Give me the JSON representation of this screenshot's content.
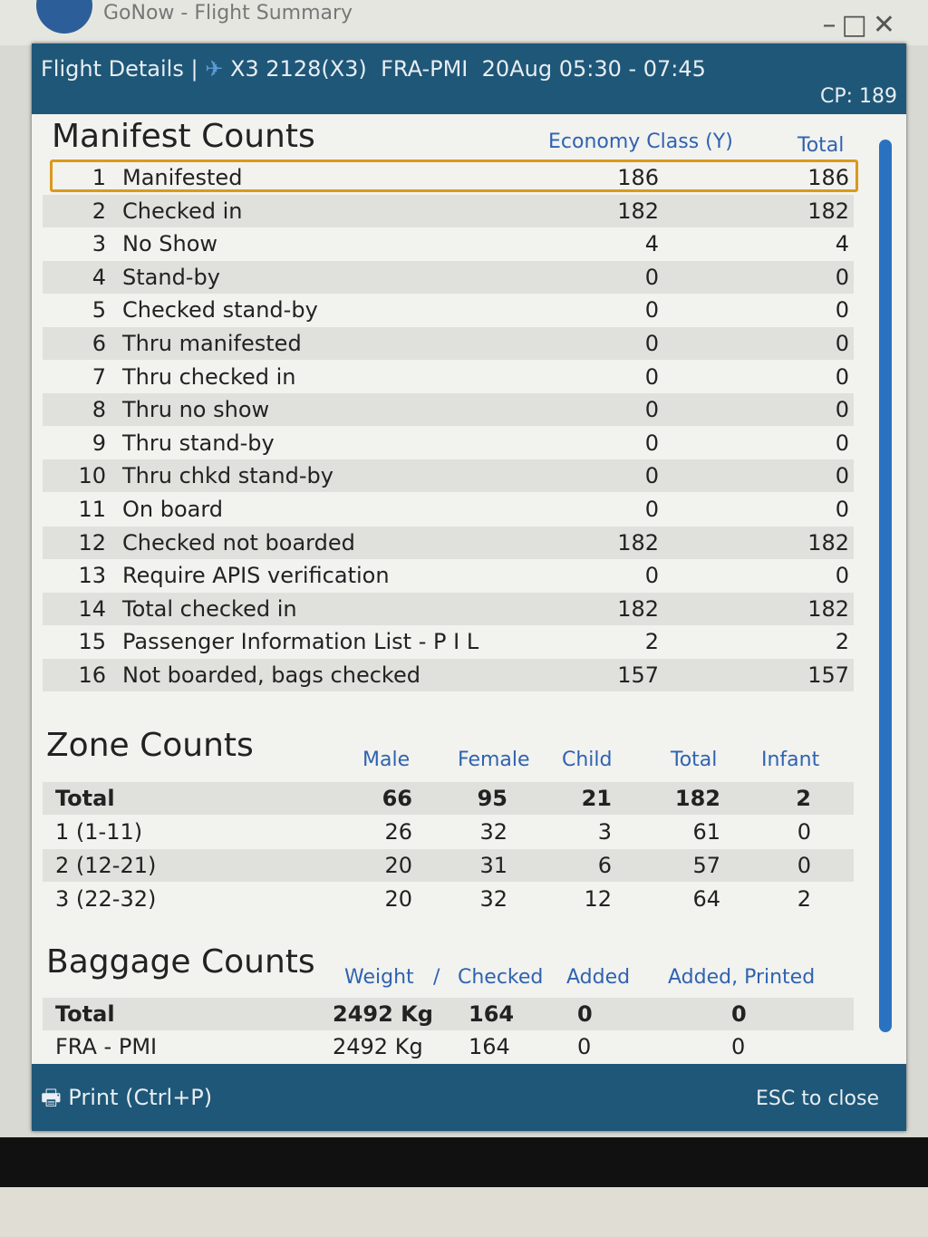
{
  "window": {
    "title": "GoNow - Flight Summary"
  },
  "dialog": {
    "title": "Flight Details |",
    "flight": "X3 2128(X3)",
    "route": "FRA-PMI",
    "date_time": "20Aug 05:30 - 07:45",
    "cp": "CP: 189"
  },
  "manifest": {
    "title": "Manifest Counts",
    "columns": [
      "Economy Class (Y)",
      "Total"
    ],
    "rows": [
      {
        "n": "1",
        "label": "Manifested",
        "y": "186",
        "total": "186"
      },
      {
        "n": "2",
        "label": "Checked in",
        "y": "182",
        "total": "182"
      },
      {
        "n": "3",
        "label": "No Show",
        "y": "4",
        "total": "4"
      },
      {
        "n": "4",
        "label": "Stand-by",
        "y": "0",
        "total": "0"
      },
      {
        "n": "5",
        "label": "Checked stand-by",
        "y": "0",
        "total": "0"
      },
      {
        "n": "6",
        "label": "Thru manifested",
        "y": "0",
        "total": "0"
      },
      {
        "n": "7",
        "label": "Thru checked in",
        "y": "0",
        "total": "0"
      },
      {
        "n": "8",
        "label": "Thru no show",
        "y": "0",
        "total": "0"
      },
      {
        "n": "9",
        "label": "Thru stand-by",
        "y": "0",
        "total": "0"
      },
      {
        "n": "10",
        "label": "Thru chkd stand-by",
        "y": "0",
        "total": "0"
      },
      {
        "n": "11",
        "label": "On board",
        "y": "0",
        "total": "0"
      },
      {
        "n": "12",
        "label": "Checked not boarded",
        "y": "182",
        "total": "182"
      },
      {
        "n": "13",
        "label": "Require APIS verification",
        "y": "0",
        "total": "0"
      },
      {
        "n": "14",
        "label": "Total checked in",
        "y": "182",
        "total": "182"
      },
      {
        "n": "15",
        "label": "Passenger Information List - P I L",
        "y": "2",
        "total": "2"
      },
      {
        "n": "16",
        "label": "Not boarded, bags checked",
        "y": "157",
        "total": "157"
      }
    ]
  },
  "zones": {
    "title": "Zone Counts",
    "columns": [
      "Male",
      "Female",
      "Child",
      "Total",
      "Infant"
    ],
    "rows": [
      {
        "label": "Total",
        "v": [
          "66",
          "95",
          "21",
          "182",
          "2"
        ]
      },
      {
        "label": "1 (1-11)",
        "v": [
          "26",
          "32",
          "3",
          "61",
          "0"
        ]
      },
      {
        "label": "2 (12-21)",
        "v": [
          "20",
          "31",
          "6",
          "57",
          "0"
        ]
      },
      {
        "label": "3 (22-32)",
        "v": [
          "20",
          "32",
          "12",
          "64",
          "2"
        ]
      }
    ]
  },
  "baggage": {
    "title": "Baggage Counts",
    "columns": [
      "Weight",
      "/",
      "Checked",
      "Added",
      "Added, Printed"
    ],
    "rows": [
      {
        "label": "Total",
        "v": [
          "2492 Kg",
          "164",
          "0",
          "0"
        ]
      },
      {
        "label": "FRA - PMI",
        "v": [
          "2492 Kg",
          "164",
          "0",
          "0"
        ]
      }
    ]
  },
  "footer": {
    "print": "Print (Ctrl+P)",
    "esc": "ESC to close"
  },
  "colors": {
    "header": "#1f5778",
    "column_header": "#2f63b0",
    "highlight": "#d99a1a",
    "scrollbar": "#2a72c0"
  }
}
